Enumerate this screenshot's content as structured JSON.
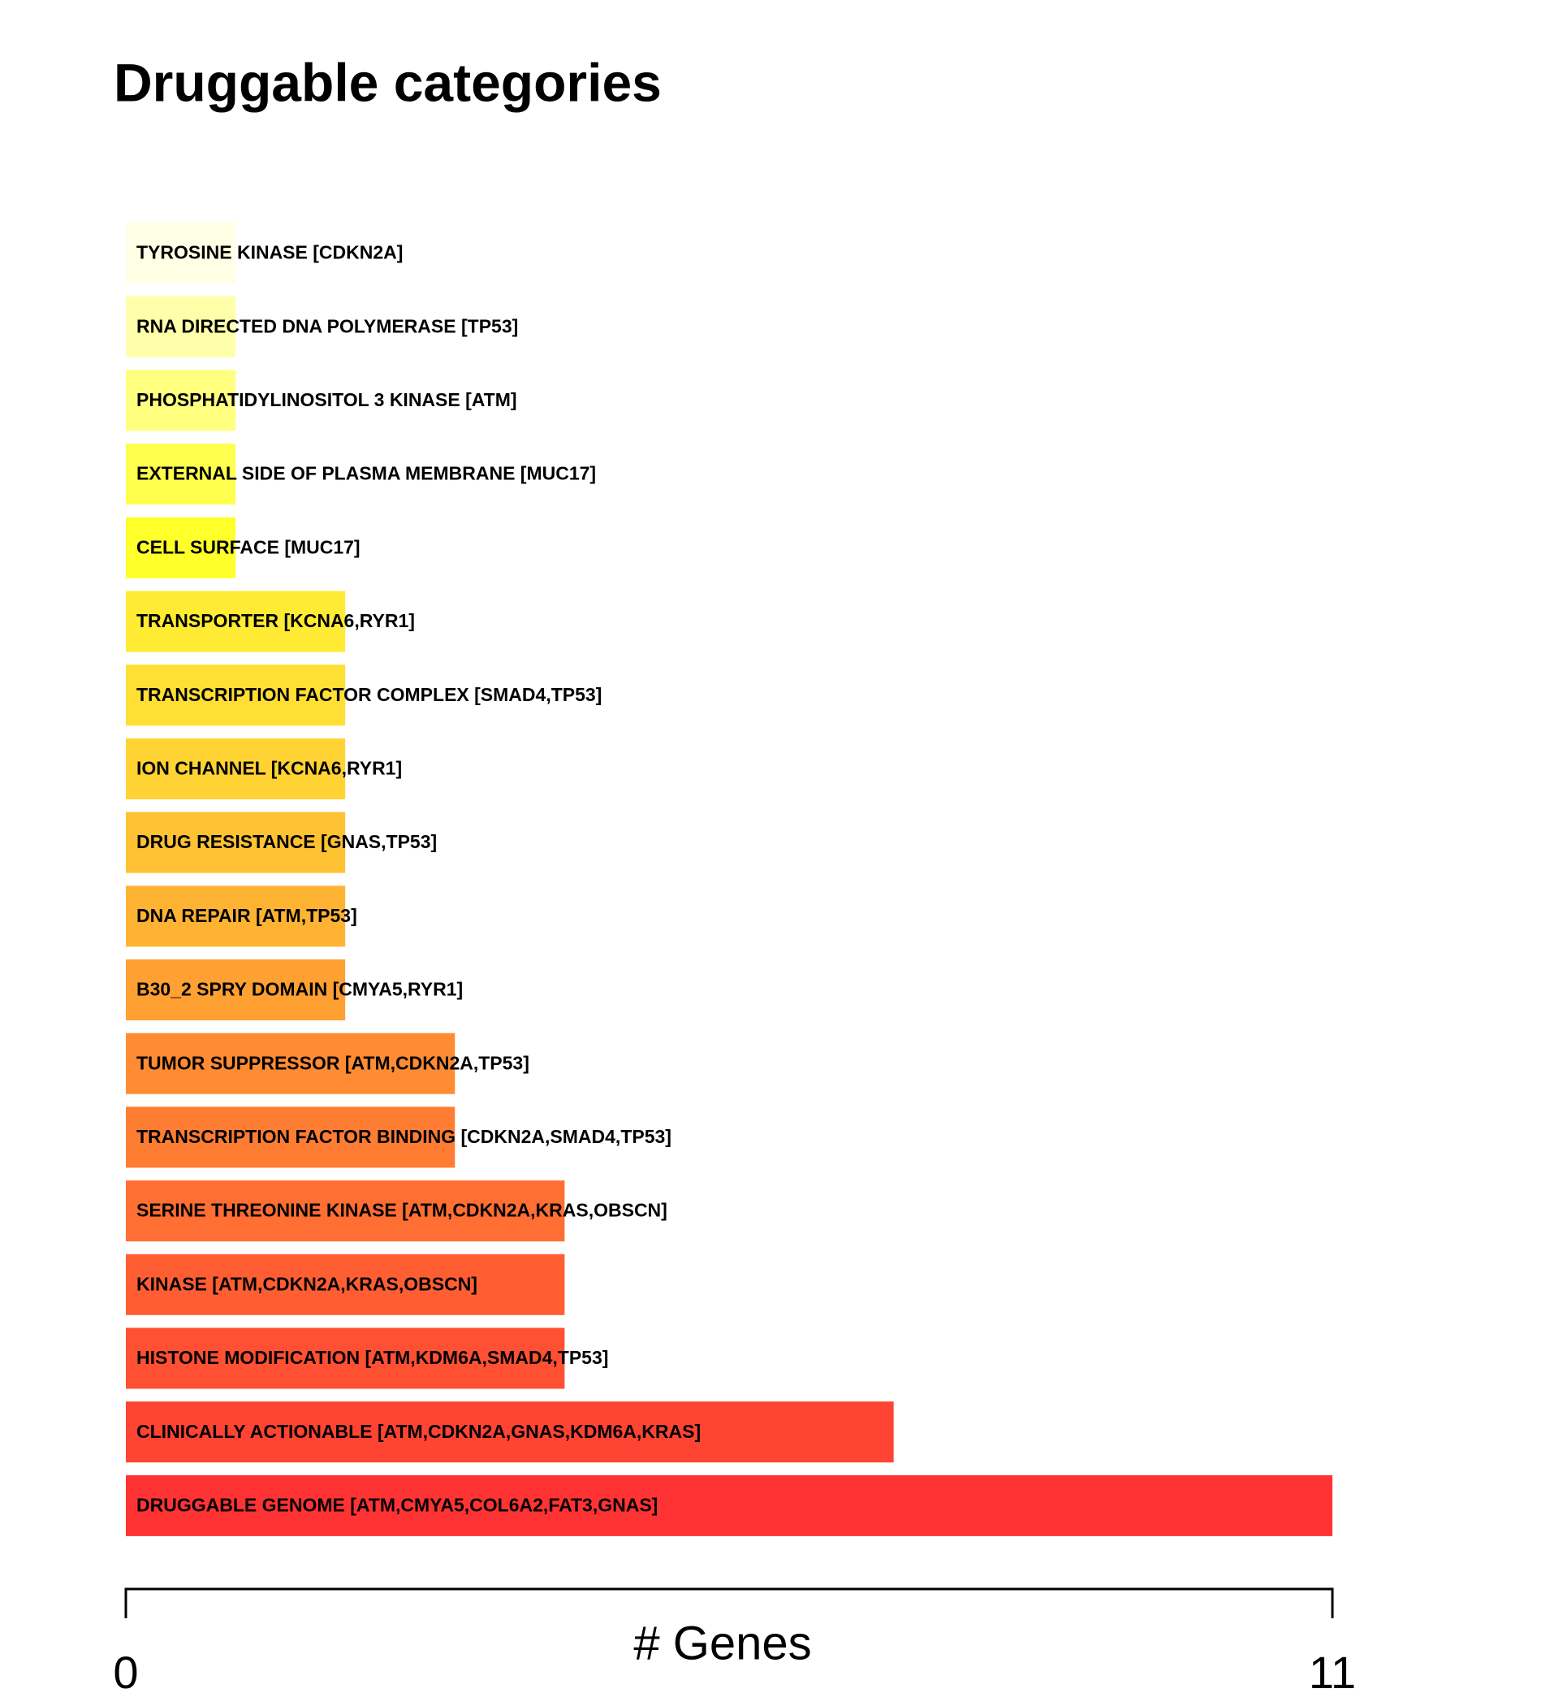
{
  "chart_data": {
    "type": "barh",
    "title": "Druggable categories",
    "xlabel": "# Genes",
    "categories": [
      "TYROSINE KINASE [CDKN2A]",
      "RNA DIRECTED DNA POLYMERASE [TP53]",
      "PHOSPHATIDYLINOSITOL 3 KINASE [ATM]",
      "EXTERNAL SIDE OF PLASMA MEMBRANE [MUC17]",
      "CELL SURFACE [MUC17]",
      "TRANSPORTER [KCNA6,RYR1]",
      "TRANSCRIPTION FACTOR COMPLEX [SMAD4,TP53]",
      "ION CHANNEL [KCNA6,RYR1]",
      "DRUG RESISTANCE [GNAS,TP53]",
      "DNA REPAIR [ATM,TP53]",
      "B30_2 SPRY DOMAIN [CMYA5,RYR1]",
      "TUMOR SUPPRESSOR [ATM,CDKN2A,TP53]",
      "TRANSCRIPTION FACTOR BINDING [CDKN2A,SMAD4,TP53]",
      "SERINE THREONINE KINASE [ATM,CDKN2A,KRAS,OBSCN]",
      "KINASE [ATM,CDKN2A,KRAS,OBSCN]",
      "HISTONE MODIFICATION [ATM,KDM6A,SMAD4,TP53]",
      "CLINICALLY ACTIONABLE [ATM,CDKN2A,GNAS,KDM6A,KRAS]",
      "DRUGGABLE GENOME [ATM,CMYA5,COL6A2,FAT3,GNAS]"
    ],
    "values": [
      1,
      1,
      1,
      1,
      1,
      2,
      2,
      2,
      2,
      2,
      2,
      3,
      3,
      4,
      4,
      4,
      7,
      11
    ],
    "colors": [
      "#FFFFE5",
      "#FFFFAA",
      "#FFFF80",
      "#FFFF4D",
      "#FFFF2A",
      "#FFEB33",
      "#FFDF33",
      "#FFD333",
      "#FFC233",
      "#FFB333",
      "#FFA033",
      "#FF8C33",
      "#FF7D33",
      "#FF6E33",
      "#FF5E33",
      "#FF5033",
      "#FF4433",
      "#FF3333"
    ],
    "xlim": [
      0,
      11
    ],
    "xticks": [
      0,
      11
    ]
  }
}
